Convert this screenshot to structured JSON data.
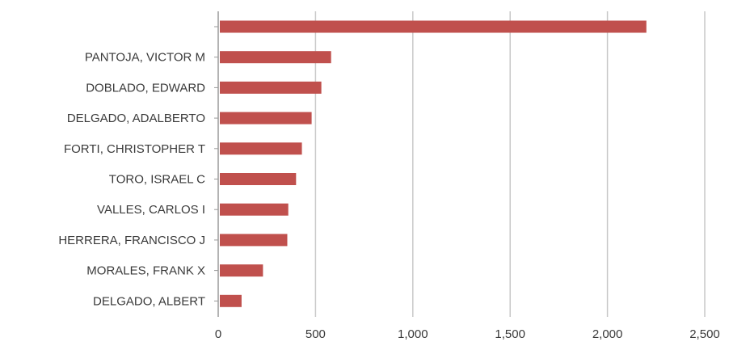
{
  "chart_data": {
    "type": "bar",
    "orientation": "horizontal",
    "categories": [
      "",
      "PANTOJA, VICTOR M",
      "DOBLADO, EDWARD",
      "DELGADO, ADALBERTO",
      "FORTI, CHRISTOPHER T",
      "TORO, ISRAEL C",
      "VALLES, CARLOS I",
      "HERRERA, FRANCISCO J",
      "MORALES, FRANK X",
      "DELGADO, ALBERT"
    ],
    "values": [
      2200,
      580,
      530,
      480,
      430,
      400,
      360,
      355,
      230,
      120
    ],
    "xlim": [
      0,
      2500
    ],
    "xticks": [
      0,
      500,
      1000,
      1500,
      2000,
      2500
    ],
    "xtick_labels": [
      "0",
      "500",
      "1,000",
      "1,500",
      "2,000",
      "2,500"
    ],
    "grid": "vertical",
    "bar_color": "#c0504d",
    "title": "",
    "xlabel": "",
    "ylabel": ""
  }
}
